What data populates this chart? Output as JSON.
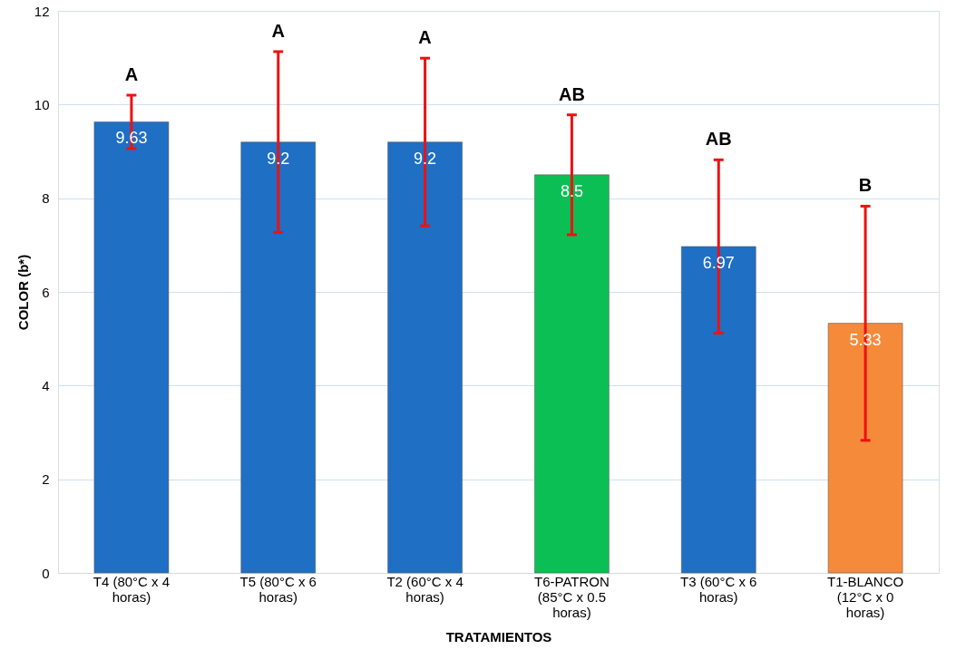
{
  "chart_data": {
    "type": "bar",
    "xlabel": "TRATAMIENTOS",
    "ylabel": "COLOR (b*)",
    "categories": [
      "T4 (80°C x 4 horas)",
      "T5 (80°C x 6 horas)",
      "T2 (60°C x 4 horas)",
      "T6-PATRON (85°C x 0.5 horas)",
      "T3 (60°C x 6 horas)",
      "T1-BLANCO (12°C x 0 horas)"
    ],
    "values": [
      9.63,
      9.2,
      9.2,
      8.5,
      6.97,
      5.33
    ],
    "colors": [
      "#1f6fc5",
      "#1f6fc5",
      "#1f6fc5",
      "#0bbf55",
      "#1f6fc5",
      "#f58a3a"
    ],
    "errors": [
      0.57,
      1.93,
      1.79,
      1.28,
      1.85,
      2.5
    ],
    "data_labels": true,
    "ylim": [
      0,
      12
    ],
    "yticks": [
      0,
      2,
      4,
      6,
      8,
      10,
      12
    ],
    "grid": "y",
    "annotations": [
      "A",
      "A",
      "A",
      "AB",
      "AB",
      "B"
    ]
  }
}
